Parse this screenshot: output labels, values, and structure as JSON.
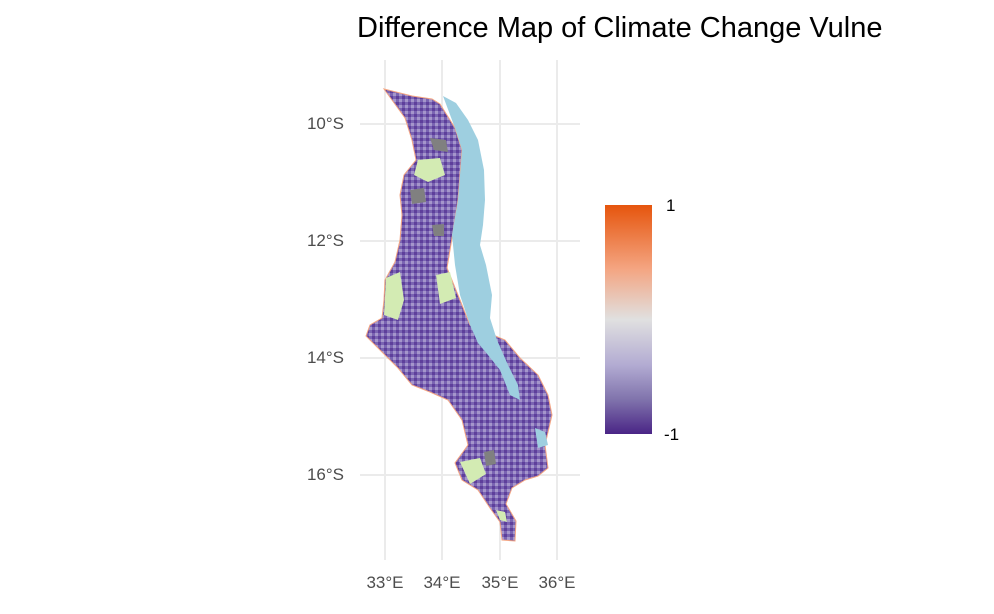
{
  "title": "Difference Map of Climate Change Vulne",
  "y_axis": {
    "ticks": [
      "10°S",
      "12°S",
      "14°S",
      "16°S"
    ]
  },
  "x_axis": {
    "ticks": [
      "33°E",
      "34°E",
      "35°E",
      "36°E"
    ]
  },
  "legend": {
    "max_label": "1",
    "min_label": "-1",
    "low_color": "#4a2586",
    "mid_color": "#e0e0e0",
    "high_color": "#e6550d"
  },
  "colors": {
    "lake": "#9ecfe0",
    "no_data_green": "#d3ebb3",
    "no_data_gray": "#808080",
    "vulnerability_purple": "#6a51a3"
  }
}
